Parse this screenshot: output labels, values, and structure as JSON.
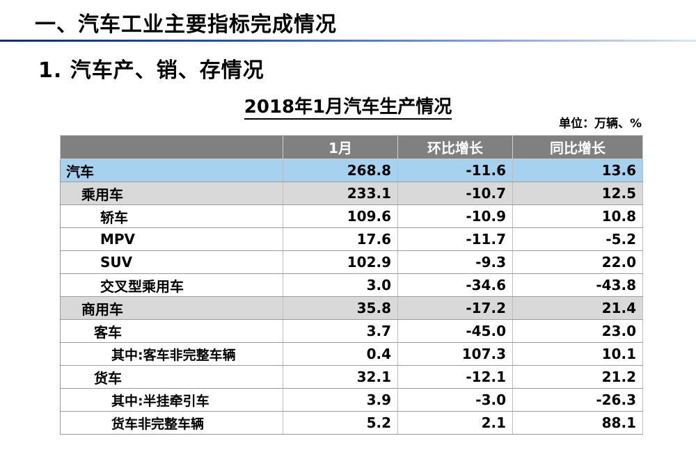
{
  "slide": {
    "heading1": "一、汽车工业主要指标完成情况",
    "heading2": "1. 汽车产、销、存情况"
  },
  "table": {
    "title": "2018年1月汽车生产情况",
    "unit": "单位：万辆、%",
    "headers": [
      "",
      "1月",
      "环比增长",
      "同比增长"
    ],
    "rows": [
      {
        "level": "lvl0",
        "name": "汽车",
        "month": "268.8",
        "mom": "-11.6",
        "yoy": "13.6"
      },
      {
        "level": "lvl1",
        "name": "乘用车",
        "month": "233.1",
        "mom": "-10.7",
        "yoy": "12.5"
      },
      {
        "level": "lvl2",
        "name": "轿车",
        "month": "109.6",
        "mom": "-10.9",
        "yoy": "10.8"
      },
      {
        "level": "lvl2",
        "name": "MPV",
        "month": "17.6",
        "mom": "-11.7",
        "yoy": "-5.2"
      },
      {
        "level": "lvl2",
        "name": "SUV",
        "month": "102.9",
        "mom": "-9.3",
        "yoy": "22.0"
      },
      {
        "level": "lvl2",
        "name": "交叉型乘用车",
        "month": "3.0",
        "mom": "-34.6",
        "yoy": "-43.8"
      },
      {
        "level": "lvl1",
        "name": "商用车",
        "month": "35.8",
        "mom": "-17.2",
        "yoy": "21.4"
      },
      {
        "level": "lvl2b",
        "name": "客车",
        "month": "3.7",
        "mom": "-45.0",
        "yoy": "23.0"
      },
      {
        "level": "lvl3",
        "name": "其中:客车非完整车辆",
        "month": "0.4",
        "mom": "107.3",
        "yoy": "10.1"
      },
      {
        "level": "lvl2b",
        "name": "货车",
        "month": "32.1",
        "mom": "-12.1",
        "yoy": "21.2"
      },
      {
        "level": "lvl3",
        "name": "其中:半挂牵引车",
        "month": "3.9",
        "mom": "-3.0",
        "yoy": "-26.3"
      },
      {
        "level": "lvl3",
        "name": "货车非完整车辆",
        "month": "5.2",
        "mom": "2.1",
        "yoy": "88.1"
      }
    ]
  }
}
